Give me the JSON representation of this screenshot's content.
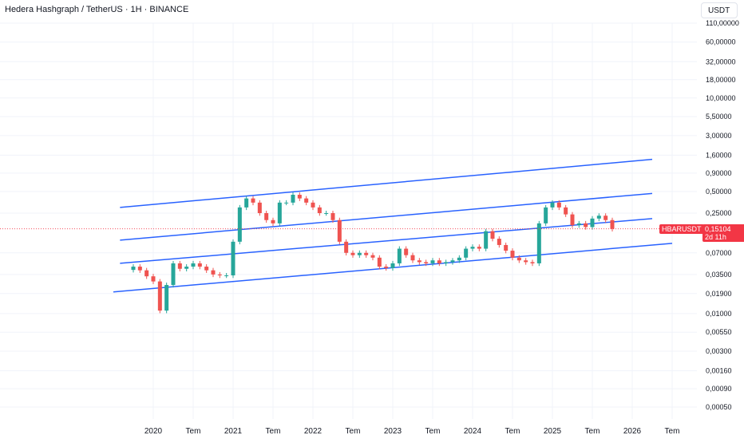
{
  "header": {
    "title": "Hedera Hashgraph / TetherUS · 1H · BINANCE",
    "currency_label": "USDT"
  },
  "price_tag": {
    "symbol": "HBARUSDT",
    "price": "0,15104",
    "countdown": "2d 11h",
    "color": "#f23645"
  },
  "colors": {
    "up": "#26a69a",
    "down": "#ef5350",
    "channel": "#2962ff",
    "grid": "#f0f3fa"
  },
  "chart_data": {
    "type": "candlestick",
    "y_scale": "log",
    "y_ticks": [
      "110,00000",
      "60,00000",
      "32,00000",
      "18,00000",
      "10,00000",
      "5,50000",
      "3,00000",
      "1,60000",
      "0,90000",
      "0,50000",
      "0,25000",
      "0,15104",
      "0,07000",
      "0,03500",
      "0,01900",
      "0,01000",
      "0,00550",
      "0,00300",
      "0,00160",
      "0,00090",
      "0,00050"
    ],
    "y_tick_values": [
      110,
      60,
      32,
      18,
      10,
      5.5,
      3,
      1.6,
      0.9,
      0.5,
      0.25,
      0.15104,
      0.07,
      0.035,
      0.019,
      0.01,
      0.0055,
      0.003,
      0.0016,
      0.0009,
      0.0005
    ],
    "x_ticks": [
      "2020",
      "Tem",
      "2021",
      "Tem",
      "2022",
      "Tem",
      "2023",
      "Tem",
      "2024",
      "Tem",
      "2025",
      "Tem",
      "2026",
      "Tem"
    ],
    "x_tick_dates": [
      "2020-01",
      "2020-07",
      "2021-01",
      "2021-07",
      "2022-01",
      "2022-07",
      "2023-01",
      "2023-07",
      "2024-01",
      "2024-07",
      "2025-01",
      "2025-07",
      "2026-01",
      "2026-07"
    ],
    "last_price": 0.15104,
    "series": [
      {
        "values": [
          [
            "2019-10",
            0.045
          ],
          [
            "2019-11",
            0.04
          ],
          [
            "2019-12",
            0.033
          ],
          [
            "2020-01",
            0.028
          ],
          [
            "2020-02",
            0.011
          ],
          [
            "2020-03",
            0.025
          ],
          [
            "2020-04",
            0.05
          ],
          [
            "2020-05",
            0.042
          ],
          [
            "2020-06",
            0.045
          ],
          [
            "2020-07",
            0.05
          ],
          [
            "2020-08",
            0.045
          ],
          [
            "2020-09",
            0.04
          ],
          [
            "2020-10",
            0.035
          ],
          [
            "2020-11",
            0.034
          ],
          [
            "2020-12",
            0.034
          ],
          [
            "2021-01",
            0.1
          ],
          [
            "2021-02",
            0.3
          ],
          [
            "2021-03",
            0.4
          ],
          [
            "2021-04",
            0.35
          ],
          [
            "2021-05",
            0.25
          ],
          [
            "2021-06",
            0.2
          ],
          [
            "2021-07",
            0.18
          ],
          [
            "2021-08",
            0.35
          ],
          [
            "2021-09",
            0.35
          ],
          [
            "2021-10",
            0.45
          ],
          [
            "2021-11",
            0.4
          ],
          [
            "2021-12",
            0.35
          ],
          [
            "2022-01",
            0.3
          ],
          [
            "2022-02",
            0.25
          ],
          [
            "2022-03",
            0.25
          ],
          [
            "2022-04",
            0.2
          ],
          [
            "2022-05",
            0.1
          ],
          [
            "2022-06",
            0.07
          ],
          [
            "2022-07",
            0.065
          ],
          [
            "2022-08",
            0.07
          ],
          [
            "2022-09",
            0.065
          ],
          [
            "2022-10",
            0.06
          ],
          [
            "2022-11",
            0.045
          ],
          [
            "2022-12",
            0.043
          ],
          [
            "2023-01",
            0.05
          ],
          [
            "2023-02",
            0.08
          ],
          [
            "2023-03",
            0.065
          ],
          [
            "2023-04",
            0.055
          ],
          [
            "2023-05",
            0.052
          ],
          [
            "2023-06",
            0.05
          ],
          [
            "2023-07",
            0.055
          ],
          [
            "2023-08",
            0.05
          ],
          [
            "2023-09",
            0.052
          ],
          [
            "2023-10",
            0.055
          ],
          [
            "2023-11",
            0.06
          ],
          [
            "2023-12",
            0.08
          ],
          [
            "2024-01",
            0.085
          ],
          [
            "2024-02",
            0.08
          ],
          [
            "2024-03",
            0.14
          ],
          [
            "2024-04",
            0.11
          ],
          [
            "2024-05",
            0.09
          ],
          [
            "2024-06",
            0.075
          ],
          [
            "2024-07",
            0.06
          ],
          [
            "2024-08",
            0.055
          ],
          [
            "2024-09",
            0.052
          ],
          [
            "2024-10",
            0.05
          ],
          [
            "2024-11",
            0.18
          ],
          [
            "2024-12",
            0.3
          ],
          [
            "2025-01",
            0.35
          ],
          [
            "2025-02",
            0.3
          ],
          [
            "2025-03",
            0.24
          ],
          [
            "2025-04",
            0.17
          ],
          [
            "2025-05",
            0.18
          ],
          [
            "2025-06",
            0.16
          ],
          [
            "2025-07",
            0.21
          ],
          [
            "2025-08",
            0.23
          ],
          [
            "2025-09",
            0.2
          ],
          [
            "2025-10",
            0.15104
          ]
        ]
      }
    ],
    "channel_lines": [
      {
        "start": [
          "2019-07",
          0.02
        ],
        "end": [
          "2026-07",
          0.095
        ]
      },
      {
        "start": [
          "2019-08",
          0.05
        ],
        "end": [
          "2026-04",
          0.21
        ]
      },
      {
        "start": [
          "2019-08",
          0.105
        ],
        "end": [
          "2026-04",
          0.47
        ]
      },
      {
        "start": [
          "2019-08",
          0.3
        ],
        "end": [
          "2026-04",
          1.4
        ]
      }
    ]
  }
}
